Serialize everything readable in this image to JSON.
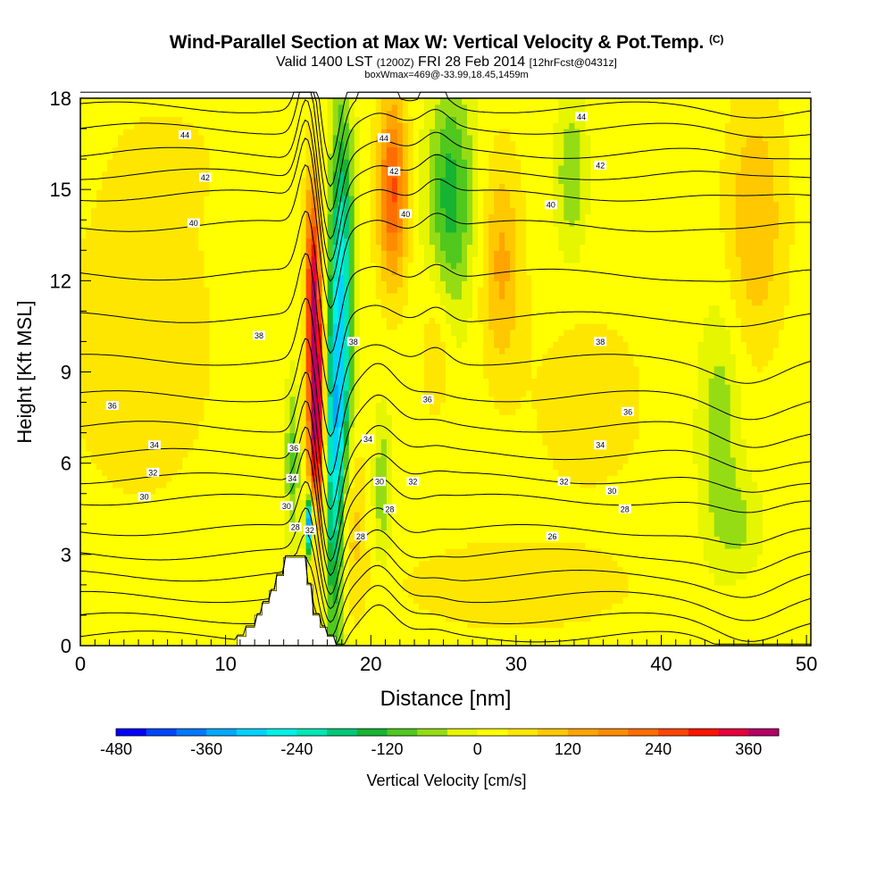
{
  "title": {
    "main": "Wind-Parallel Section at Max W: Vertical Velocity & Pot.Temp.",
    "copyright": "(C)",
    "valid_prefix": "Valid 1400 LST",
    "valid_utc": "(1200Z)",
    "valid_date": "FRI 28 Feb 2014",
    "forecast": "[12hrFcst@0431z]",
    "subtitle": "boxWmax=469@-33.99,18.45,1459m"
  },
  "colors": {
    "terrain": "#ffffff",
    "contour": "#000000",
    "background_field": "#ffd800"
  },
  "chart_data": {
    "type": "heatmap",
    "xlabel": "Distance [nm]",
    "ylabel": "Height [Kft MSL]",
    "xlim": [
      0,
      50.3
    ],
    "ylim": [
      0,
      18
    ],
    "x_ticks": [
      0,
      10,
      20,
      30,
      40,
      50
    ],
    "y_ticks": [
      0,
      3,
      6,
      9,
      12,
      15,
      18
    ],
    "colorbar": {
      "label": "Vertical Velocity [cm/s]",
      "range": [
        -480,
        400
      ],
      "tick_values": [
        -480,
        -360,
        -240,
        -120,
        0,
        120,
        240,
        360
      ],
      "tick_labels": [
        "-480",
        "-360",
        "-240",
        "-120",
        "0",
        "120",
        "240",
        "360"
      ],
      "bins": [
        {
          "from": -480,
          "to": -440,
          "color": "#0000ff"
        },
        {
          "from": -440,
          "to": -400,
          "color": "#0046ff"
        },
        {
          "from": -400,
          "to": -360,
          "color": "#0078ff"
        },
        {
          "from": -360,
          "to": -320,
          "color": "#00aaff"
        },
        {
          "from": -320,
          "to": -280,
          "color": "#00d2ff"
        },
        {
          "from": -280,
          "to": -240,
          "color": "#00f0e6"
        },
        {
          "from": -240,
          "to": -200,
          "color": "#00e6b4"
        },
        {
          "from": -200,
          "to": -160,
          "color": "#00c878"
        },
        {
          "from": -160,
          "to": -120,
          "color": "#16b432"
        },
        {
          "from": -120,
          "to": -80,
          "color": "#50c81e"
        },
        {
          "from": -80,
          "to": -40,
          "color": "#96dc14"
        },
        {
          "from": -40,
          "to": 0,
          "color": "#e6f500"
        },
        {
          "from": 0,
          "to": 40,
          "color": "#ffff00"
        },
        {
          "from": 40,
          "to": 80,
          "color": "#ffe600"
        },
        {
          "from": 80,
          "to": 120,
          "color": "#ffc800"
        },
        {
          "from": 120,
          "to": 160,
          "color": "#ffa500"
        },
        {
          "from": 160,
          "to": 200,
          "color": "#ff8c00"
        },
        {
          "from": 200,
          "to": 240,
          "color": "#ff6e00"
        },
        {
          "from": 240,
          "to": 280,
          "color": "#ff4600"
        },
        {
          "from": 280,
          "to": 320,
          "color": "#ff1400"
        },
        {
          "from": 320,
          "to": 360,
          "color": "#e6003c"
        },
        {
          "from": 360,
          "to": 400,
          "color": "#b40064"
        }
      ]
    },
    "terrain_profile": {
      "x": [
        10.2,
        10.8,
        11.4,
        12.0,
        12.5,
        13.0,
        13.5,
        14.0,
        15.3,
        15.6,
        16.0,
        16.5,
        17.0,
        17.6,
        18.0
      ],
      "height": [
        0,
        0.3,
        0.6,
        1.0,
        1.4,
        1.8,
        2.3,
        2.9,
        2.9,
        2.0,
        1.0,
        0.6,
        0.3,
        0,
        0
      ]
    },
    "w_features": [
      {
        "x": 16.3,
        "z": 7.5,
        "rx": 0.6,
        "rz": 4.0,
        "value": 380
      },
      {
        "x": 16.0,
        "z": 12.0,
        "rx": 0.5,
        "rz": 3.5,
        "value": 260
      },
      {
        "x": 18.3,
        "z": 4.0,
        "rx": 1.1,
        "rz": 3.0,
        "value": 120
      },
      {
        "x": 17.5,
        "z": 5.5,
        "rx": 0.8,
        "rz": 5.5,
        "value": -300
      },
      {
        "x": 18.0,
        "z": 12.0,
        "rx": 0.8,
        "rz": 6.0,
        "value": -250
      },
      {
        "x": 14.6,
        "z": 6.0,
        "rx": 0.5,
        "rz": 2.6,
        "value": -120
      },
      {
        "x": 15.8,
        "z": 4.0,
        "rx": 0.3,
        "rz": 1.0,
        "value": -470
      },
      {
        "x": 21.5,
        "z": 15.0,
        "rx": 1.0,
        "rz": 3.0,
        "value": 230
      },
      {
        "x": 20.8,
        "z": 5.2,
        "rx": 0.6,
        "rz": 2.5,
        "value": -90
      },
      {
        "x": 25.5,
        "z": 14.8,
        "rx": 1.6,
        "rz": 3.8,
        "value": -160
      },
      {
        "x": 24.5,
        "z": 10.0,
        "rx": 1.0,
        "rz": 2.5,
        "value": 60
      },
      {
        "x": 29.0,
        "z": 12.5,
        "rx": 1.4,
        "rz": 3.5,
        "value": 110
      },
      {
        "x": 33.8,
        "z": 15.5,
        "rx": 1.0,
        "rz": 2.5,
        "value": -100
      },
      {
        "x": 44.0,
        "z": 7.0,
        "rx": 1.4,
        "rz": 4.0,
        "value": -90
      },
      {
        "x": 45.5,
        "z": 4.0,
        "rx": 1.5,
        "rz": 1.5,
        "value": -60
      },
      {
        "x": 46.5,
        "z": 14.0,
        "rx": 2.0,
        "rz": 4.0,
        "value": 100
      },
      {
        "x": 4.0,
        "z": 10.0,
        "rx": 5.0,
        "rz": 5.0,
        "value": 55
      },
      {
        "x": 35.0,
        "z": 8.0,
        "rx": 4.0,
        "rz": 3.0,
        "value": 45
      },
      {
        "x": 30.0,
        "z": 2.0,
        "rx": 8.0,
        "rz": 1.5,
        "value": 50
      },
      {
        "x": 6.0,
        "z": 16.0,
        "rx": 4.0,
        "rz": 2.0,
        "value": 25
      }
    ],
    "theta_contours": {
      "units": "K",
      "levels": [
        26,
        27,
        28,
        29,
        30,
        31,
        32,
        33,
        34,
        35,
        36,
        37,
        38,
        39,
        40,
        41,
        42,
        43,
        44,
        45,
        46
      ],
      "base_heights_kft": [
        0.3,
        0.9,
        1.6,
        2.3,
        3.0,
        3.8,
        4.8,
        5.5,
        6.3,
        7.2,
        8.2,
        9.4,
        10.8,
        12.2,
        13.8,
        14.8,
        15.5,
        16.2,
        17.0,
        17.7,
        18.5
      ],
      "labels": [
        {
          "text": "44",
          "x": 7.2,
          "z": 16.8
        },
        {
          "text": "42",
          "x": 8.6,
          "z": 15.4
        },
        {
          "text": "40",
          "x": 7.8,
          "z": 13.9
        },
        {
          "text": "38",
          "x": 12.3,
          "z": 10.2
        },
        {
          "text": "36",
          "x": 2.2,
          "z": 7.9
        },
        {
          "text": "34",
          "x": 5.1,
          "z": 6.6
        },
        {
          "text": "32",
          "x": 5.0,
          "z": 5.7
        },
        {
          "text": "30",
          "x": 4.4,
          "z": 4.9
        },
        {
          "text": "36",
          "x": 14.7,
          "z": 6.5
        },
        {
          "text": "34",
          "x": 14.6,
          "z": 5.5
        },
        {
          "text": "30",
          "x": 14.2,
          "z": 4.6
        },
        {
          "text": "28",
          "x": 14.8,
          "z": 3.9
        },
        {
          "text": "32",
          "x": 15.8,
          "z": 3.8
        },
        {
          "text": "38",
          "x": 18.8,
          "z": 10.0
        },
        {
          "text": "44",
          "x": 20.9,
          "z": 16.7
        },
        {
          "text": "42",
          "x": 21.6,
          "z": 15.6
        },
        {
          "text": "40",
          "x": 22.4,
          "z": 14.2
        },
        {
          "text": "34",
          "x": 19.8,
          "z": 6.8
        },
        {
          "text": "30",
          "x": 20.6,
          "z": 5.4
        },
        {
          "text": "32",
          "x": 22.9,
          "z": 5.4
        },
        {
          "text": "28",
          "x": 21.3,
          "z": 4.5
        },
        {
          "text": "28",
          "x": 19.3,
          "z": 3.6
        },
        {
          "text": "36",
          "x": 23.9,
          "z": 8.1
        },
        {
          "text": "44",
          "x": 34.5,
          "z": 17.4
        },
        {
          "text": "42",
          "x": 35.8,
          "z": 15.8
        },
        {
          "text": "40",
          "x": 32.4,
          "z": 14.5
        },
        {
          "text": "38",
          "x": 35.8,
          "z": 10.0
        },
        {
          "text": "36",
          "x": 37.7,
          "z": 7.7
        },
        {
          "text": "34",
          "x": 35.8,
          "z": 6.6
        },
        {
          "text": "32",
          "x": 33.3,
          "z": 5.4
        },
        {
          "text": "30",
          "x": 36.6,
          "z": 5.1
        },
        {
          "text": "28",
          "x": 37.5,
          "z": 4.5
        },
        {
          "text": "26",
          "x": 32.5,
          "z": 3.6
        }
      ]
    }
  }
}
